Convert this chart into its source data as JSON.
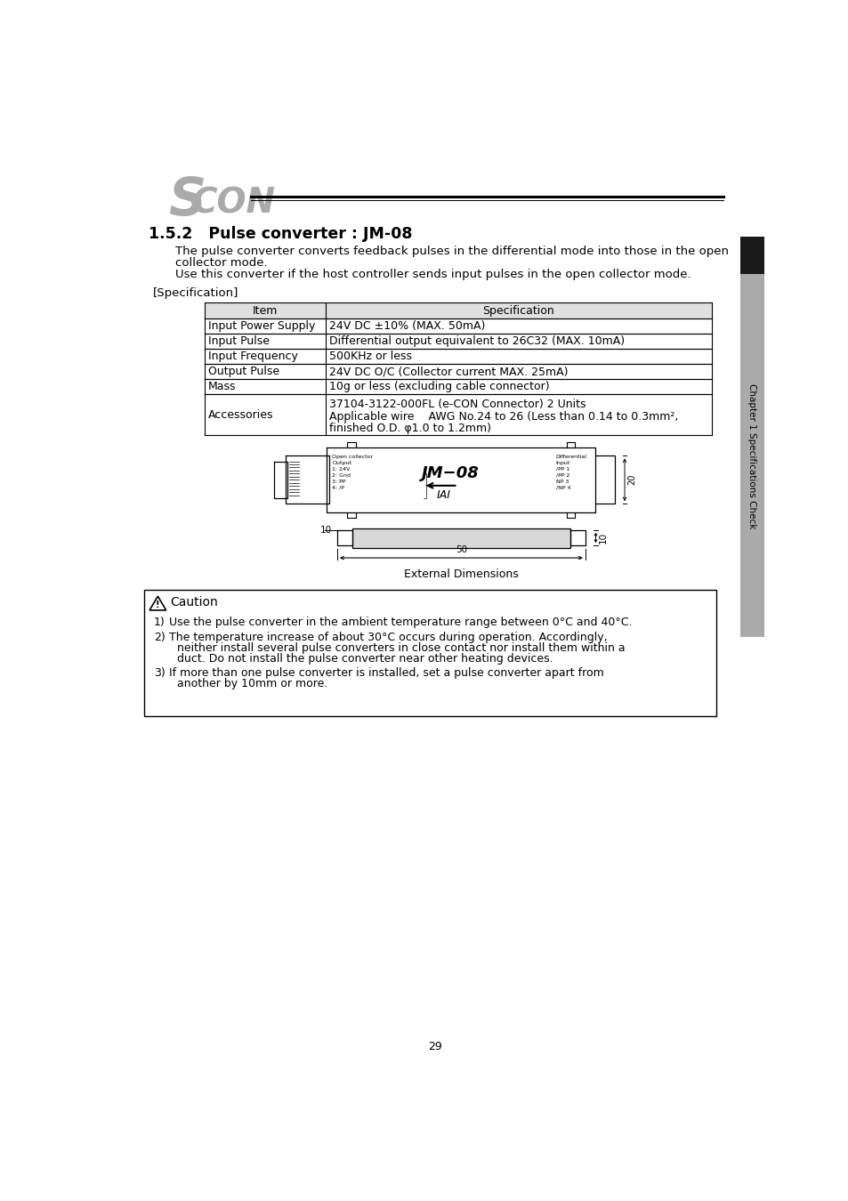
{
  "page_bg": "#ffffff",
  "section_title": "1.5.2   Pulse converter : JM-08",
  "intro_lines": [
    "The pulse converter converts feedback pulses in the differential mode into those in the open",
    "collector mode.",
    "Use this converter if the host controller sends input pulses in the open collector mode."
  ],
  "spec_label": "[Specification]",
  "table_headers": [
    "Item",
    "Specification"
  ],
  "table_rows": [
    [
      "Input Power Supply",
      "24V DC ±10% (MAX. 50mA)"
    ],
    [
      "Input Pulse",
      "Differential output equivalent to 26C32 (MAX. 10mA)"
    ],
    [
      "Input Frequency",
      "500KHz or less"
    ],
    [
      "Output Pulse",
      "24V DC O/C (Collector current MAX. 25mA)"
    ],
    [
      "Mass",
      "10g or less (excluding cable connector)"
    ],
    [
      "Accessories",
      "37104-3122-000FL (e-CON Connector) 2 Units\nApplicable wire    AWG No.24 to 26 (Less than 0.14 to 0.3mm²,\nfinished O.D. φ1.0 to 1.2mm)"
    ]
  ],
  "ext_dim_label": "External Dimensions",
  "caution_title": "Caution",
  "caution_items": [
    "Use the pulse converter in the ambient temperature range between 0°C and 40°C.",
    "The temperature increase of about 30°C occurs during operation. Accordingly,\nneither install several pulse converters in close contact nor install them within a\nduct. Do not install the pulse converter near other heating devices.",
    "If more than one pulse converter is installed, set a pulse converter apart from\nanother by 10mm or more."
  ],
  "page_number": "29",
  "sidebar_text": "Chapter 1 Specifications Check"
}
